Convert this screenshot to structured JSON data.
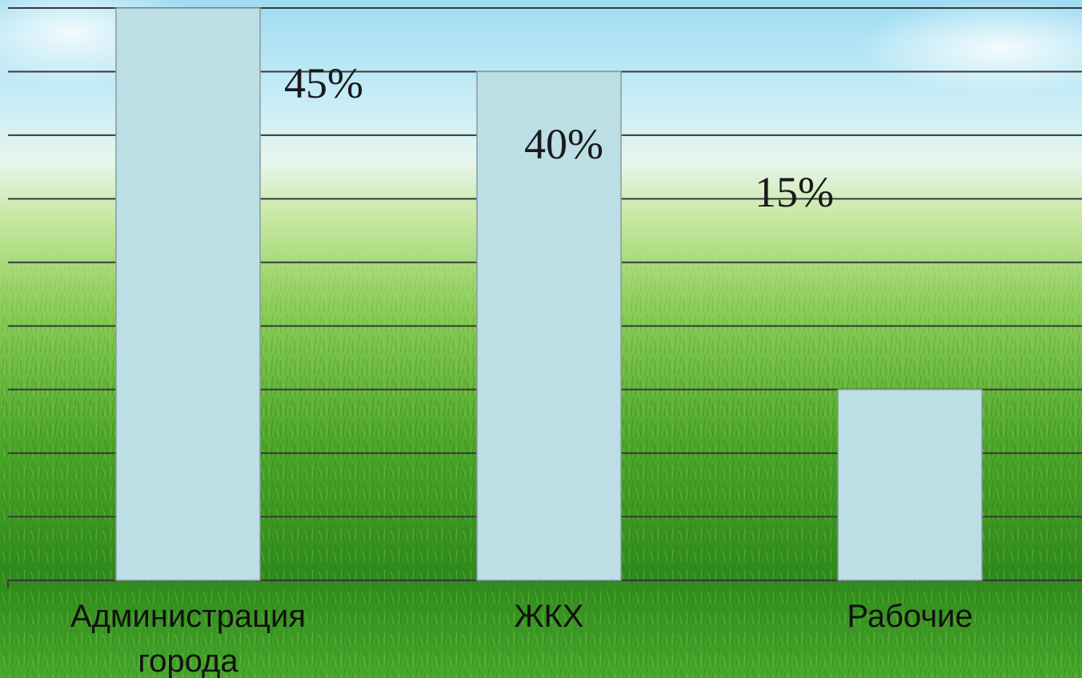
{
  "chart_data": {
    "type": "bar",
    "categories": [
      "Администрация города",
      "ЖКХ",
      "Рабочие"
    ],
    "category_lines": [
      [
        "Администрация",
        "города"
      ],
      [
        "ЖКХ"
      ],
      [
        "Рабочие"
      ]
    ],
    "values": [
      45,
      40,
      15
    ],
    "data_labels": [
      "45%",
      "40%",
      "15%"
    ],
    "ylim": [
      0,
      45
    ],
    "y_step": 5,
    "grid": true,
    "legend": "none"
  },
  "colors": {
    "bar_fill": "#bcdfe6",
    "bar_stroke": "#8a9a9e",
    "grid": "#3a3a3a"
  }
}
